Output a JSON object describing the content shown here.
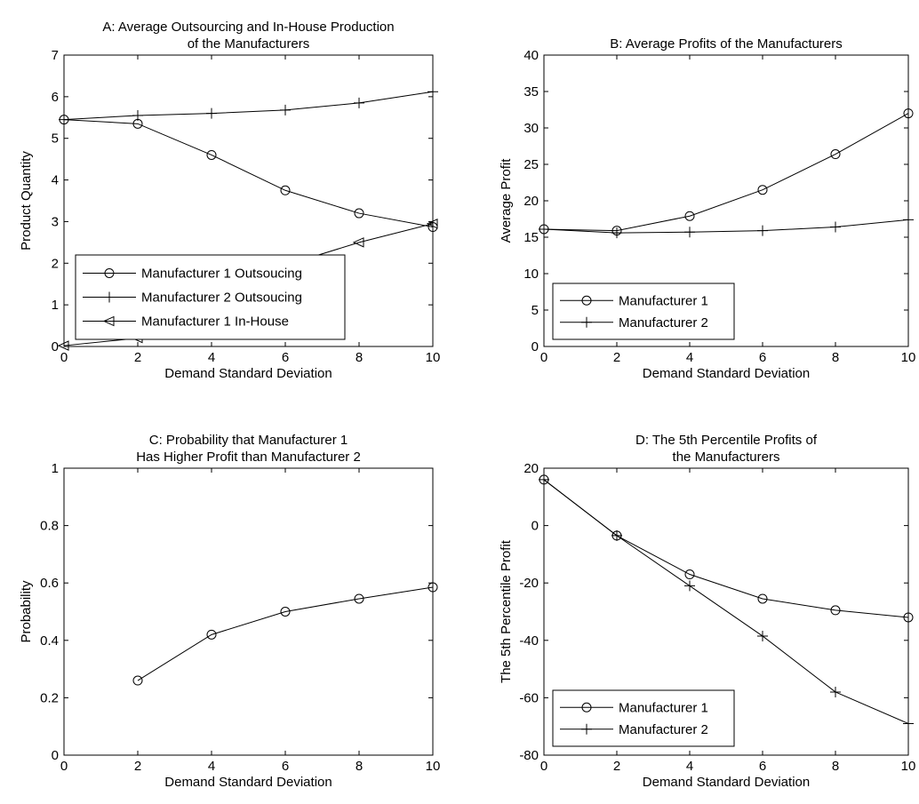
{
  "chart_data": [
    {
      "id": "A",
      "type": "line",
      "title": [
        "A: Average Outsourcing and In-House Production",
        "of the Manufacturers"
      ],
      "xlabel": "Demand Standard Deviation",
      "ylabel": "Product Quantity",
      "xlim": [
        0,
        10
      ],
      "ylim": [
        0,
        7
      ],
      "xticks": [
        0,
        2,
        4,
        6,
        8,
        10
      ],
      "yticks": [
        0,
        1,
        2,
        3,
        4,
        5,
        6,
        7
      ],
      "legend_position": "lower-left",
      "series": [
        {
          "name": "Manufacturer 1 Outsoucing",
          "marker": "circle",
          "x": [
            0,
            2,
            4,
            6,
            8,
            10
          ],
          "y": [
            5.45,
            5.35,
            4.6,
            3.75,
            3.2,
            2.87
          ]
        },
        {
          "name": "Manufacturer 2 Outsoucing",
          "marker": "plus",
          "x": [
            0,
            2,
            4,
            6,
            8,
            10
          ],
          "y": [
            5.45,
            5.55,
            5.6,
            5.68,
            5.85,
            6.12
          ]
        },
        {
          "name": "Manufacturer 1 In-House",
          "marker": "triangle-left",
          "x": [
            0,
            2,
            4,
            6,
            8,
            10
          ],
          "y": [
            0.02,
            0.2,
            0.85,
            1.95,
            2.5,
            2.95
          ]
        }
      ]
    },
    {
      "id": "B",
      "type": "line",
      "title": [
        "B: Average Profits of the Manufacturers"
      ],
      "xlabel": "Demand Standard Deviation",
      "ylabel": "Average Profit",
      "xlim": [
        0,
        10
      ],
      "ylim": [
        0,
        40
      ],
      "xticks": [
        0,
        2,
        4,
        6,
        8,
        10
      ],
      "yticks": [
        0,
        5,
        10,
        15,
        20,
        25,
        30,
        35,
        40
      ],
      "legend_position": "lower-left",
      "series": [
        {
          "name": "Manufacturer 1",
          "marker": "circle",
          "x": [
            0,
            2,
            4,
            6,
            8,
            10
          ],
          "y": [
            16.1,
            15.9,
            17.9,
            21.5,
            26.4,
            32.0
          ]
        },
        {
          "name": "Manufacturer 2",
          "marker": "plus",
          "x": [
            0,
            2,
            4,
            6,
            8,
            10
          ],
          "y": [
            16.1,
            15.6,
            15.7,
            15.9,
            16.4,
            17.4
          ]
        }
      ]
    },
    {
      "id": "C",
      "type": "line",
      "title": [
        "C: Probability that Manufacturer 1",
        "Has Higher Profit than Manufacturer 2"
      ],
      "xlabel": "Demand Standard Deviation",
      "ylabel": "Probability",
      "xlim": [
        0,
        10
      ],
      "ylim": [
        0,
        1
      ],
      "xticks": [
        0,
        2,
        4,
        6,
        8,
        10
      ],
      "yticks": [
        0,
        0.2,
        0.4,
        0.6,
        0.8,
        1
      ],
      "legend_position": "none",
      "series": [
        {
          "name": "",
          "marker": "circle",
          "x": [
            2,
            4,
            6,
            8,
            10
          ],
          "y": [
            0.26,
            0.42,
            0.5,
            0.545,
            0.585
          ]
        }
      ]
    },
    {
      "id": "D",
      "type": "line",
      "title": [
        "D: The 5th Percentile Profits of",
        "the Manufacturers"
      ],
      "xlabel": "Demand Standard Deviation",
      "ylabel": "The 5th Percentile Profit",
      "xlim": [
        0,
        10
      ],
      "ylim": [
        -80,
        20
      ],
      "xticks": [
        0,
        2,
        4,
        6,
        8,
        10
      ],
      "yticks": [
        -80,
        -60,
        -40,
        -20,
        0,
        20
      ],
      "legend_position": "lower-left",
      "series": [
        {
          "name": "Manufacturer 1",
          "marker": "circle",
          "x": [
            0,
            2,
            4,
            6,
            8,
            10
          ],
          "y": [
            16,
            -3.5,
            -17,
            -25.5,
            -29.5,
            -32
          ]
        },
        {
          "name": "Manufacturer 2",
          "marker": "plus",
          "x": [
            0,
            2,
            4,
            6,
            8,
            10
          ],
          "y": [
            16,
            -3.5,
            -21,
            -38.5,
            -58,
            -69
          ]
        }
      ]
    }
  ]
}
